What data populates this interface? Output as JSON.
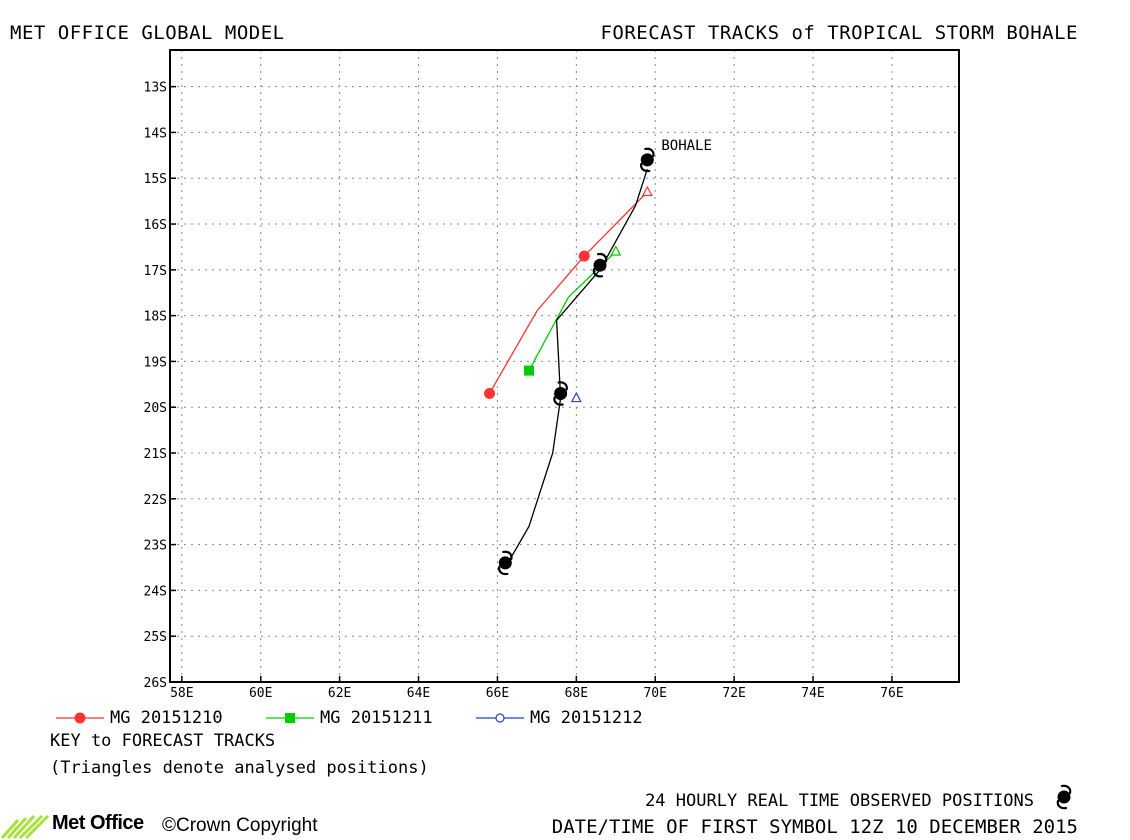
{
  "header": {
    "left_title": "MET OFFICE GLOBAL MODEL",
    "right_title": "FORECAST TRACKS of TROPICAL STORM BOHALE"
  },
  "chart_data": {
    "type": "line",
    "title": "FORECAST TRACKS of TROPICAL STORM BOHALE",
    "xlim": [
      57.7,
      77.7
    ],
    "ylim": [
      -26,
      -12.2
    ],
    "x_ticks": [
      58,
      60,
      62,
      64,
      66,
      68,
      70,
      72,
      74,
      76
    ],
    "x_tick_labels": [
      "58E",
      "60E",
      "62E",
      "64E",
      "66E",
      "68E",
      "70E",
      "72E",
      "74E",
      "76E"
    ],
    "y_ticks": [
      -13,
      -14,
      -15,
      -16,
      -17,
      -18,
      -19,
      -20,
      -21,
      -22,
      -23,
      -24,
      -25,
      -26
    ],
    "y_tick_labels": [
      "13S",
      "14S",
      "15S",
      "16S",
      "17S",
      "18S",
      "19S",
      "20S",
      "21S",
      "22S",
      "23S",
      "24S",
      "25S",
      "26S"
    ],
    "grid": true,
    "storm_label": "BOHALE",
    "observed": {
      "name": "24 HOURLY REAL TIME OBSERVED POSITIONS",
      "color": "#000000",
      "track": [
        [
          69.8,
          -14.8
        ],
        [
          69.5,
          -15.6
        ],
        [
          68.6,
          -17.0
        ],
        [
          67.9,
          -17.7
        ],
        [
          67.5,
          -18.1
        ],
        [
          67.6,
          -19.8
        ],
        [
          67.4,
          -21.0
        ],
        [
          66.8,
          -22.6
        ],
        [
          66.2,
          -23.5
        ]
      ],
      "positions": [
        [
          69.8,
          -14.6
        ],
        [
          68.6,
          -16.9
        ],
        [
          67.6,
          -19.7
        ],
        [
          66.2,
          -23.4
        ]
      ]
    },
    "series": [
      {
        "name": "MG 20151210",
        "color": "#ff3333",
        "marker": "circle-filled",
        "analysed": [
          69.8,
          -15.3
        ],
        "track": [
          [
            69.8,
            -15.3
          ],
          [
            68.2,
            -16.7
          ],
          [
            67.0,
            -17.9
          ],
          [
            65.8,
            -19.7
          ]
        ],
        "markers": [
          [
            68.2,
            -16.7
          ],
          [
            65.8,
            -19.7
          ]
        ]
      },
      {
        "name": "MG 20151211",
        "color": "#00cc00",
        "marker": "square-filled",
        "analysed": [
          69.0,
          -16.6
        ],
        "track": [
          [
            69.0,
            -16.6
          ],
          [
            67.8,
            -17.6
          ],
          [
            66.8,
            -19.2
          ]
        ],
        "markers": [
          [
            66.8,
            -19.2
          ]
        ]
      },
      {
        "name": "MG 20151212",
        "color": "#2244cc",
        "marker": "circle-open",
        "analysed": [
          68.0,
          -19.8
        ],
        "track": [
          [
            68.0,
            -19.8
          ]
        ],
        "markers": []
      }
    ]
  },
  "key": {
    "title": "KEY to FORECAST TRACKS",
    "note": "(Triangles denote analysed positions)"
  },
  "footer": {
    "observed_label": "24 HOURLY REAL TIME OBSERVED POSITIONS",
    "datetime_label": "DATE/TIME OF FIRST SYMBOL 12Z 10 DECEMBER 2015",
    "logo_text": "Met Office",
    "copyright": "©Crown Copyright"
  }
}
